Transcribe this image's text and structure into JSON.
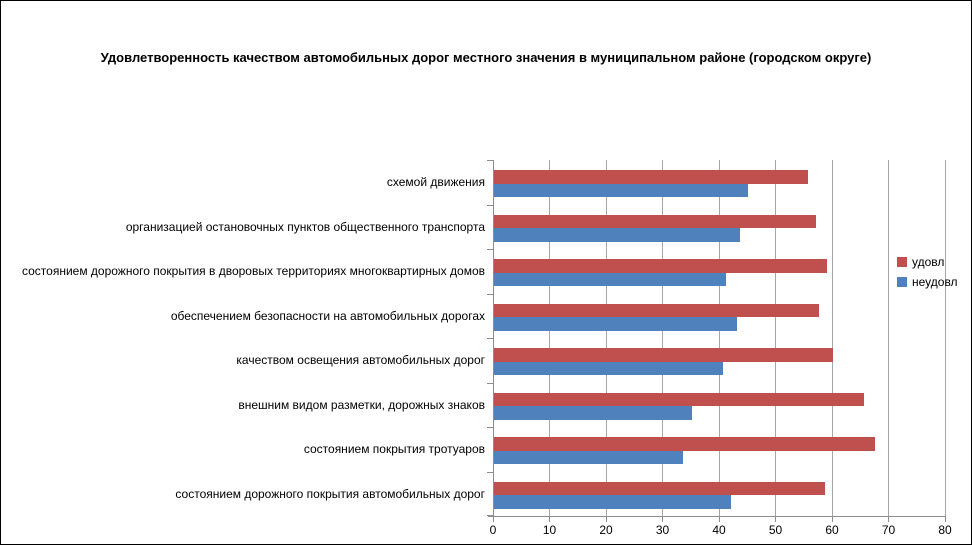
{
  "chart_data": {
    "type": "bar",
    "orientation": "horizontal",
    "title": "Удовлетворенность качеством автомобильных дорог местного значения в муниципальном районе (городском округе)",
    "categories": [
      "схемой движения",
      "организацией остановочных пунктов общественного транспорта",
      "состоянием дорожного покрытия в дворовых территориях многоквартирных домов",
      "обеспечением безопасности на автомобильных дорогах",
      "качеством освещения автомобильных дорог",
      "внешним видом разметки, дорожных знаков",
      "состоянием покрытия тротуаров",
      "состоянием дорожного покрытия автомобильных дорог"
    ],
    "series": [
      {
        "name": "удовл",
        "color": "#C0504D",
        "values": [
          55.5,
          57,
          59,
          57.5,
          60,
          65.5,
          67.5,
          58.5
        ]
      },
      {
        "name": "неудовл",
        "color": "#4F81BD",
        "values": [
          45,
          43.5,
          41,
          43,
          40.5,
          35,
          33.5,
          42
        ]
      }
    ],
    "xlim": [
      0,
      80
    ],
    "xticks": [
      0,
      10,
      20,
      30,
      40,
      50,
      60,
      70,
      80
    ],
    "grid": "vertical-major",
    "legend_position": "right",
    "colors": {
      "gridline": "#a6a6a6",
      "axis": "#8c8c8c",
      "text": "#000000",
      "background": "#ffffff",
      "frame_border": "#000000"
    }
  }
}
